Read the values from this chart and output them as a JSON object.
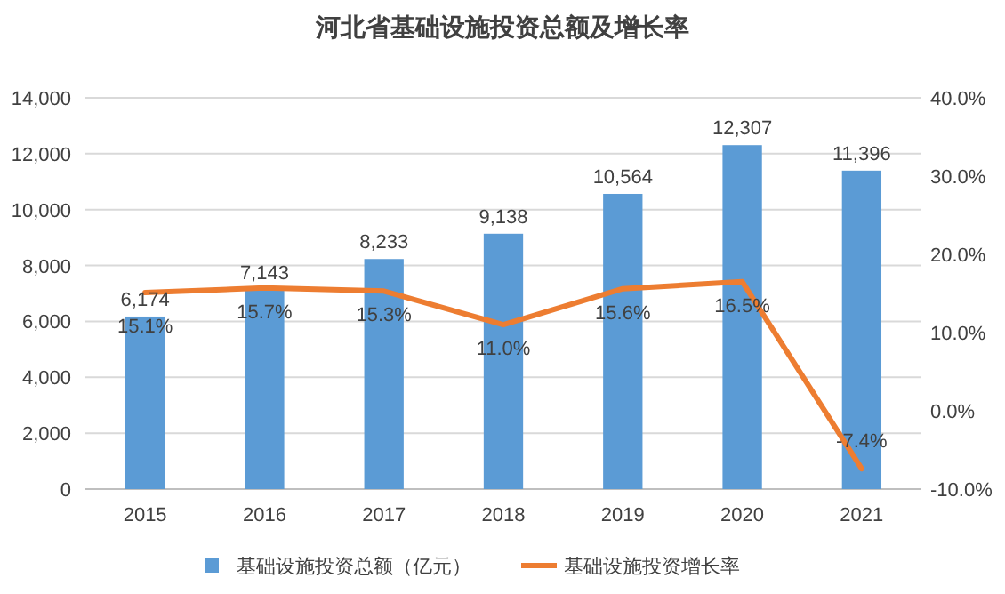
{
  "chart_data": {
    "type": "bar",
    "title": "河北省基础设施投资总额及增长率",
    "categories": [
      "2015",
      "2016",
      "2017",
      "2018",
      "2019",
      "2020",
      "2021"
    ],
    "series": [
      {
        "name": "基础设施投资总额（亿元）",
        "color": "#5b9bd5",
        "values": [
          6174,
          7143,
          8233,
          9138,
          10564,
          12307,
          11396
        ],
        "value_labels": [
          "6,174",
          "7,143",
          "8,233",
          "9,138",
          "10,564",
          "12,307",
          "11,396"
        ]
      },
      {
        "name": "基础设施投资增长率",
        "type": "line",
        "axis": "y2",
        "color": "#ed7d31",
        "values": [
          15.1,
          15.7,
          15.3,
          11.0,
          15.6,
          16.5,
          -7.4
        ],
        "value_labels": [
          "15.1%",
          "15.7%",
          "15.3%",
          "11.0%",
          "15.6%",
          "16.5%",
          "-7.4%"
        ]
      }
    ],
    "ylim": [
      0,
      14000
    ],
    "yticks": [
      0,
      {
        "value": 2000,
        "label": "2,000"
      },
      {
        "value": 4000,
        "label": "4,000"
      },
      {
        "value": 6000,
        "label": "6,000"
      },
      {
        "value": 8000,
        "label": "8,000"
      },
      {
        "value": 10000,
        "label": "10,000"
      },
      {
        "value": 12000,
        "label": "12,000"
      },
      {
        "value": 14000,
        "label": "14,000"
      }
    ],
    "y2lim": [
      -10,
      40
    ],
    "y2ticks": [
      {
        "value": -10,
        "label": "-10.0%"
      },
      {
        "value": 0,
        "label": "0.0%"
      },
      {
        "value": 10,
        "label": "10.0%"
      },
      {
        "value": 20,
        "label": "20.0%"
      },
      {
        "value": 30,
        "label": "30.0%"
      },
      {
        "value": 40,
        "label": "40.0%"
      }
    ],
    "grid": "y",
    "legend": "bottom",
    "marker": "none",
    "line_style": "solid"
  }
}
